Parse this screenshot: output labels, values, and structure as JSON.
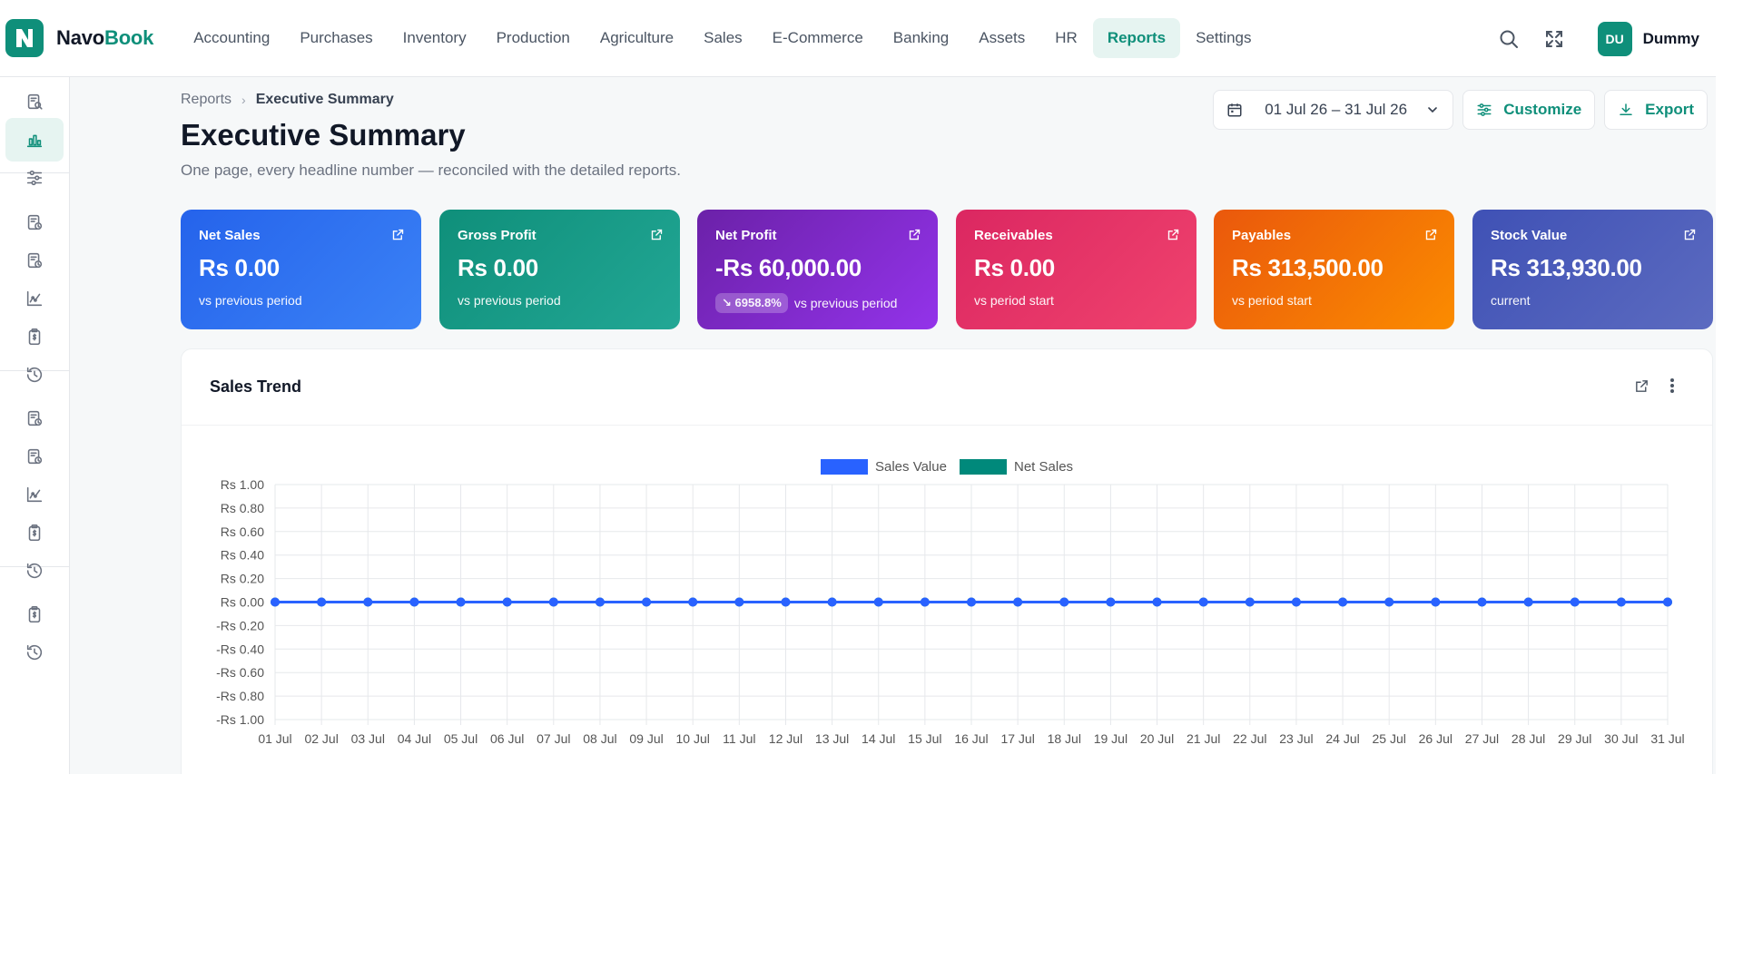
{
  "app": {
    "brand_part1": "Navo",
    "brand_part2": "Book",
    "brand_color": "#0f8f7a"
  },
  "nav": {
    "items": [
      {
        "label": "Accounting",
        "active": false
      },
      {
        "label": "Purchases",
        "active": false
      },
      {
        "label": "Inventory",
        "active": false
      },
      {
        "label": "Production",
        "active": false
      },
      {
        "label": "Agriculture",
        "active": false
      },
      {
        "label": "Sales",
        "active": false
      },
      {
        "label": "E-Commerce",
        "active": false
      },
      {
        "label": "Banking",
        "active": false
      },
      {
        "label": "Assets",
        "active": false
      },
      {
        "label": "HR",
        "active": false
      },
      {
        "label": "Reports",
        "active": true
      },
      {
        "label": "Settings",
        "active": false
      }
    ]
  },
  "user": {
    "initials": "DU",
    "name": "Dummy"
  },
  "sidebar": {
    "icons": [
      "report-search-icon",
      "bar-chart-icon",
      "sliders-icon",
      "report-clock-icon",
      "report-clock-icon",
      "trend-chart-icon",
      "clipboard-dollar-icon",
      "history-icon",
      "report-clock-icon",
      "report-clock-icon",
      "trend-chart-icon",
      "clipboard-dollar-icon",
      "history-icon",
      "clipboard-dollar-icon",
      "history-icon"
    ],
    "active_index": 1
  },
  "breadcrumb": {
    "parent": "Reports",
    "current": "Executive Summary"
  },
  "page": {
    "title": "Executive Summary",
    "subtitle": "One page, every headline number — reconciled with the detailed reports."
  },
  "toolbar": {
    "date_range": "01 Jul 26 – 31 Jul 26",
    "customize_label": "Customize",
    "export_label": "Export"
  },
  "kpis": [
    {
      "label": "Net Sales",
      "value": "Rs 0.00",
      "badge": "",
      "foot": "vs previous period",
      "color_from": "#2563eb",
      "color_to": "#3b82f6"
    },
    {
      "label": "Gross Profit",
      "value": "Rs 0.00",
      "badge": "",
      "foot": "vs previous period",
      "color_from": "#0f8f7a",
      "color_to": "#22a795"
    },
    {
      "label": "Net Profit",
      "value": "-Rs 60,000.00",
      "badge": "↘ 6958.8%",
      "foot": "vs previous period",
      "color_from": "#6b21a8",
      "color_to": "#9333ea"
    },
    {
      "label": "Receivables",
      "value": "Rs 0.00",
      "badge": "",
      "foot": "vs period start",
      "color_from": "#db2761",
      "color_to": "#f0436e"
    },
    {
      "label": "Payables",
      "value": "Rs 313,500.00",
      "badge": "",
      "foot": "vs period start",
      "color_from": "#ea580c",
      "color_to": "#fb8c00"
    },
    {
      "label": "Stock Value",
      "value": "Rs 313,930.00",
      "badge": "",
      "foot": "current",
      "color_from": "#3f51b5",
      "color_to": "#5c6bc0"
    }
  ],
  "sales_trend": {
    "title": "Sales Trend"
  },
  "chart_data": {
    "type": "line",
    "title": "",
    "xlabel": "",
    "ylabel": "",
    "categories": [
      "01 Jul",
      "02 Jul",
      "03 Jul",
      "04 Jul",
      "05 Jul",
      "06 Jul",
      "07 Jul",
      "08 Jul",
      "09 Jul",
      "10 Jul",
      "11 Jul",
      "12 Jul",
      "13 Jul",
      "14 Jul",
      "15 Jul",
      "16 Jul",
      "17 Jul",
      "18 Jul",
      "19 Jul",
      "20 Jul",
      "21 Jul",
      "22 Jul",
      "23 Jul",
      "24 Jul",
      "25 Jul",
      "26 Jul",
      "27 Jul",
      "28 Jul",
      "29 Jul",
      "30 Jul",
      "31 Jul"
    ],
    "series": [
      {
        "name": "Sales Value",
        "color": "#2962ff",
        "values": [
          0,
          0,
          0,
          0,
          0,
          0,
          0,
          0,
          0,
          0,
          0,
          0,
          0,
          0,
          0,
          0,
          0,
          0,
          0,
          0,
          0,
          0,
          0,
          0,
          0,
          0,
          0,
          0,
          0,
          0,
          0
        ]
      },
      {
        "name": "Net Sales",
        "color": "#00897b",
        "values": [
          0,
          0,
          0,
          0,
          0,
          0,
          0,
          0,
          0,
          0,
          0,
          0,
          0,
          0,
          0,
          0,
          0,
          0,
          0,
          0,
          0,
          0,
          0,
          0,
          0,
          0,
          0,
          0,
          0,
          0,
          0
        ]
      }
    ],
    "y_ticks": [
      "Rs 1.00",
      "Rs 0.80",
      "Rs 0.60",
      "Rs 0.40",
      "Rs 0.20",
      "Rs 0.00",
      "-Rs 0.20",
      "-Rs 0.40",
      "-Rs 0.60",
      "-Rs 0.80",
      "-Rs 1.00"
    ],
    "ylim": [
      -1,
      1
    ],
    "grid": true,
    "legend": "top-center"
  }
}
